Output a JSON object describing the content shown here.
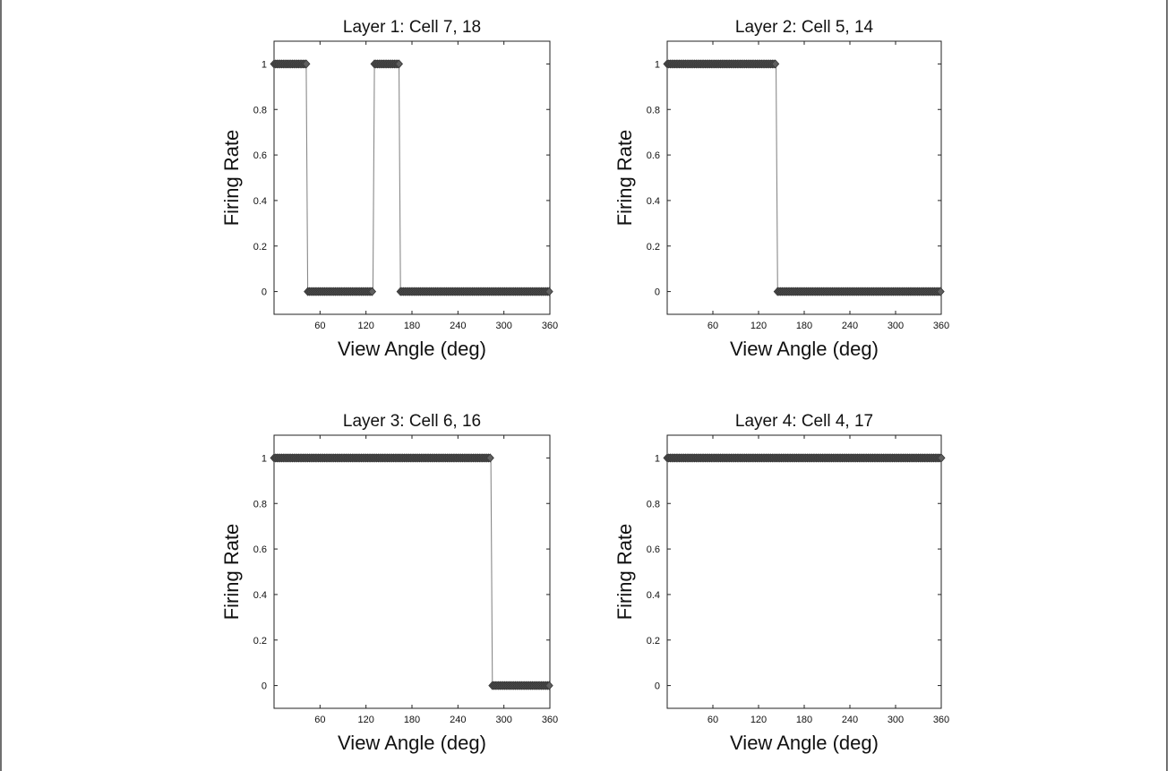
{
  "chart_data": [
    {
      "type": "line",
      "title": "Layer 1: Cell 7, 18",
      "xlabel": "View Angle (deg)",
      "ylabel": "Firing Rate",
      "xlim": [
        0,
        360
      ],
      "ylim": [
        -0.1,
        1.1
      ],
      "xticks": [
        "60",
        "120",
        "180",
        "240",
        "300",
        "360"
      ],
      "yticks": [
        "0",
        "0.2",
        "0.4",
        "0.6",
        "0.8",
        "1"
      ],
      "grid": false,
      "series": [
        {
          "segments": [
            {
              "x_start": 0,
              "x_end": 42,
              "value": 1
            },
            {
              "x_start": 44,
              "x_end": 129,
              "value": 0
            },
            {
              "x_start": 131,
              "x_end": 163,
              "value": 1
            },
            {
              "x_start": 165,
              "x_end": 360,
              "value": 0
            }
          ]
        }
      ]
    },
    {
      "type": "line",
      "title": "Layer 2: Cell 5, 14",
      "xlabel": "View Angle (deg)",
      "ylabel": "Firing Rate",
      "xlim": [
        0,
        360
      ],
      "ylim": [
        -0.1,
        1.1
      ],
      "xticks": [
        "60",
        "120",
        "180",
        "240",
        "300",
        "360"
      ],
      "yticks": [
        "0",
        "0.2",
        "0.4",
        "0.6",
        "0.8",
        "1"
      ],
      "grid": false,
      "series": [
        {
          "segments": [
            {
              "x_start": 0,
              "x_end": 143,
              "value": 1
            },
            {
              "x_start": 145,
              "x_end": 360,
              "value": 0
            }
          ]
        }
      ]
    },
    {
      "type": "line",
      "title": "Layer 3: Cell 6, 16",
      "xlabel": "View Angle (deg)",
      "ylabel": "Firing Rate",
      "xlim": [
        0,
        360
      ],
      "ylim": [
        -0.1,
        1.1
      ],
      "xticks": [
        "60",
        "120",
        "180",
        "240",
        "300",
        "360"
      ],
      "yticks": [
        "0",
        "0.2",
        "0.4",
        "0.6",
        "0.8",
        "1"
      ],
      "grid": false,
      "series": [
        {
          "segments": [
            {
              "x_start": 0,
              "x_end": 283,
              "value": 1
            },
            {
              "x_start": 285,
              "x_end": 360,
              "value": 0
            }
          ]
        }
      ]
    },
    {
      "type": "line",
      "title": "Layer 4: Cell 4, 17",
      "xlabel": "View Angle (deg)",
      "ylabel": "Firing Rate",
      "xlim": [
        0,
        360
      ],
      "ylim": [
        -0.1,
        1.1
      ],
      "xticks": [
        "60",
        "120",
        "180",
        "240",
        "300",
        "360"
      ],
      "yticks": [
        "0",
        "0.2",
        "0.4",
        "0.6",
        "0.8",
        "1"
      ],
      "grid": false,
      "series": [
        {
          "segments": [
            {
              "x_start": 0,
              "x_end": 360,
              "value": 1
            }
          ]
        }
      ]
    }
  ]
}
